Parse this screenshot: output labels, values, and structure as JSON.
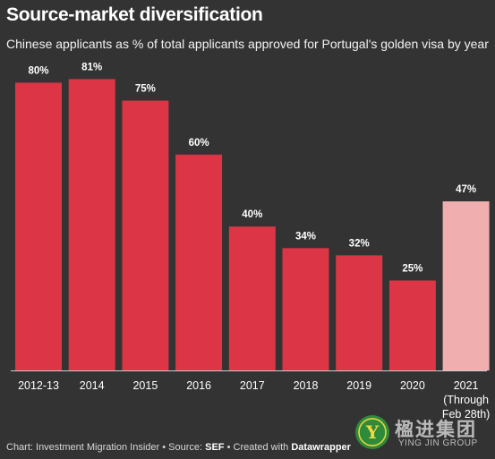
{
  "header": {
    "title": "Source-market diversification",
    "subtitle": "Chinese applicants as % of total applicants approved for Portugal's golden visa by year"
  },
  "chart_data": {
    "type": "bar",
    "title": "Source-market diversification",
    "subtitle": "Chinese applicants as % of total applicants approved for Portugal's golden visa by year",
    "categories": [
      "2012-13",
      "2014",
      "2015",
      "2016",
      "2017",
      "2018",
      "2019",
      "2020",
      "2021 (Through Feb 28th)"
    ],
    "category_lines": [
      [
        "2012-13"
      ],
      [
        "2014"
      ],
      [
        "2015"
      ],
      [
        "2016"
      ],
      [
        "2017"
      ],
      [
        "2018"
      ],
      [
        "2019"
      ],
      [
        "2020"
      ],
      [
        "2021",
        "(Through",
        "Feb 28th)"
      ]
    ],
    "values": [
      80,
      81,
      75,
      60,
      40,
      34,
      32,
      25,
      47
    ],
    "value_labels": [
      "80%",
      "81%",
      "75%",
      "60%",
      "40%",
      "34%",
      "32%",
      "25%",
      "47%"
    ],
    "ylim": [
      0,
      100
    ],
    "grid": false,
    "colors": {
      "bar": "#dc3545",
      "bar_highlight": "#f0afae",
      "highlight_index": 8,
      "background": "#333333",
      "baseline": "#cccccc"
    }
  },
  "footer": {
    "prefix": "Chart: Investment Migration Insider • Source: ",
    "source": "SEF",
    "middle": " • Created with ",
    "tool": "Datawrapper"
  },
  "watermark": {
    "chinese": "楹进集团",
    "english": "YING JIN GROUP",
    "mark_letter": "Y",
    "mark_color": "#2e8b3a",
    "icon": "ying-jin-logo-icon"
  }
}
